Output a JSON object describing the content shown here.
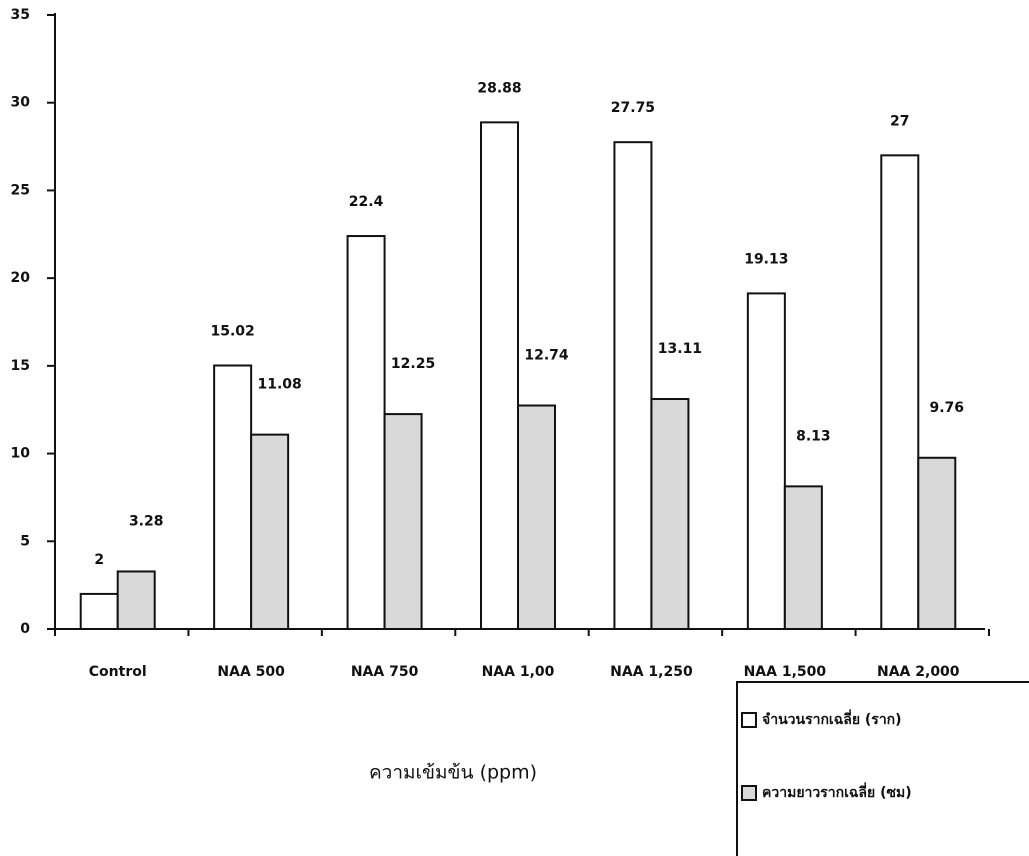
{
  "chart_data": {
    "type": "bar",
    "x_label": "ความเข้มข้น (ppm)",
    "categories": [
      "Control",
      "NAA 500",
      "NAA 750",
      "NAA 1,00",
      "NAA 1,250",
      "NAA 1,500",
      "NAA 2,000"
    ],
    "series": [
      {
        "name": "จำนวนรากเฉลี่ย (ราก)",
        "color": "#ffffff",
        "values": [
          2,
          15.02,
          22.4,
          28.88,
          27.75,
          19.13,
          27
        ]
      },
      {
        "name": "ความยาวรากเฉลี่ย (ซม)",
        "color": "#d9d9d9",
        "values": [
          3.28,
          11.08,
          12.25,
          12.74,
          13.11,
          8.13,
          9.76
        ]
      }
    ],
    "ylim": [
      0,
      35
    ],
    "yticks": [
      0,
      5,
      10,
      15,
      20,
      25,
      30,
      35
    ],
    "legend": "bottom-right"
  }
}
